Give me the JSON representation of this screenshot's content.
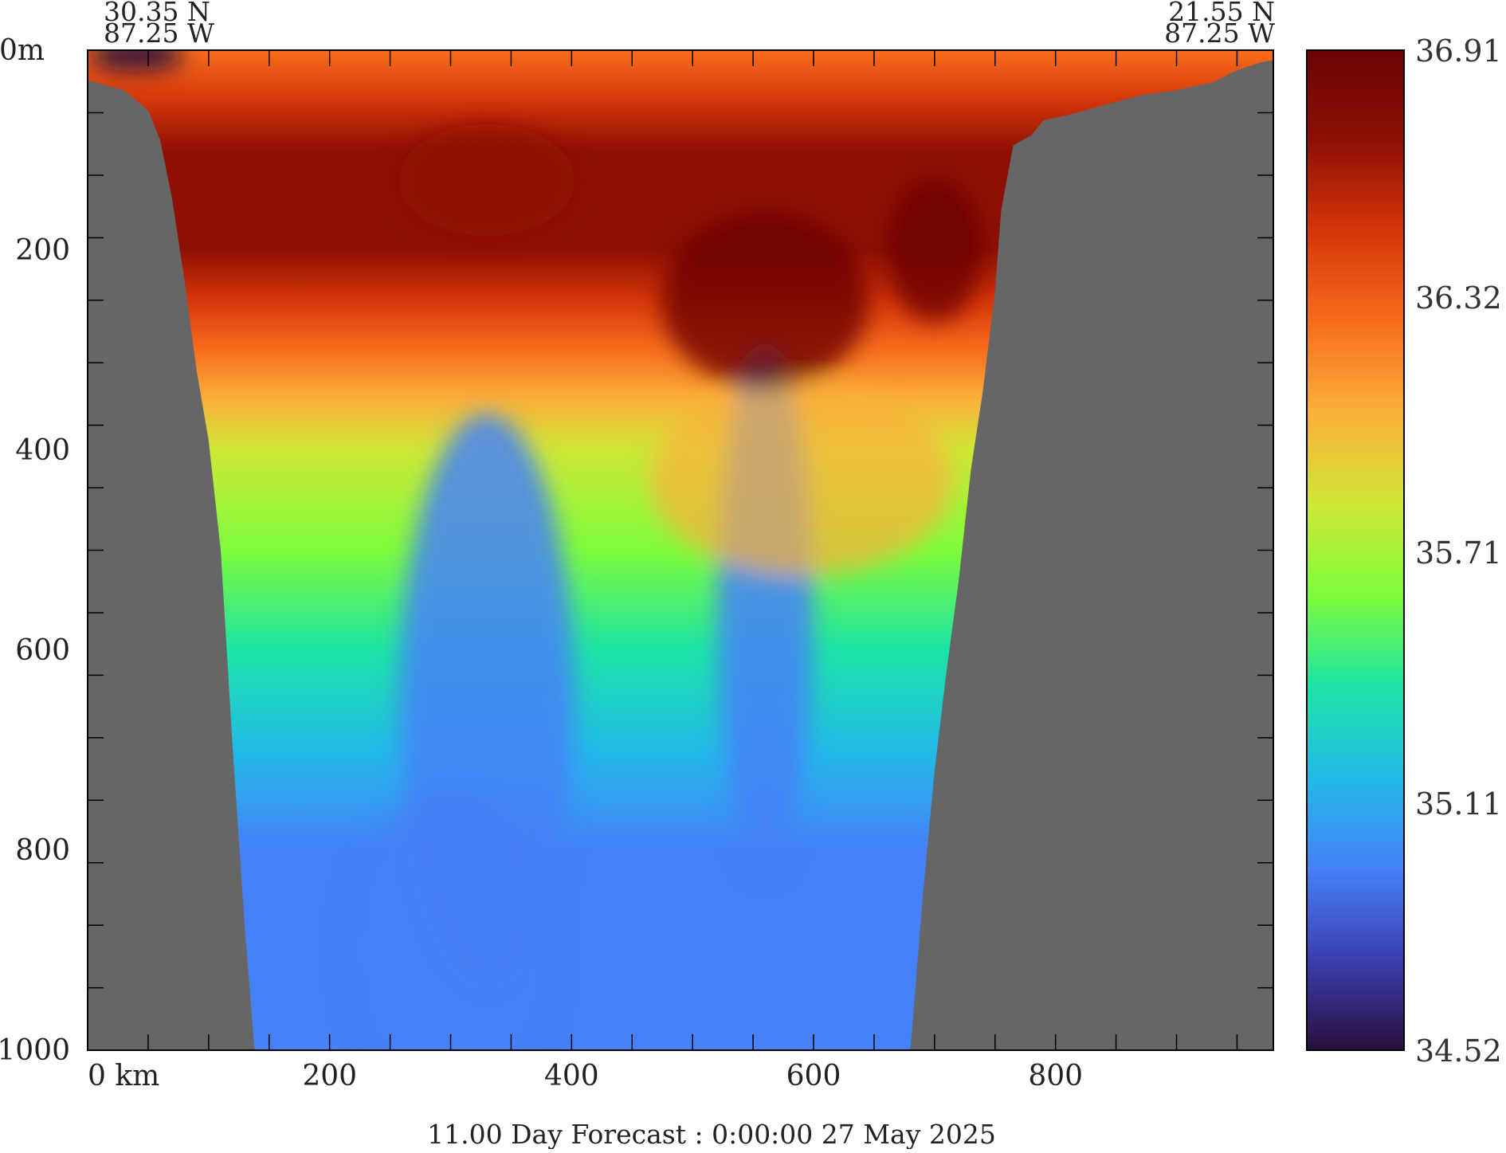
{
  "caption": "11.00 Day Forecast :  0:00:00  27 May 2025",
  "colors": {
    "land": "#666666",
    "frame": "#000000",
    "palette": [
      "#2a0f3b",
      "#3b3fb0",
      "#4581f7",
      "#22bbe8",
      "#1ce4a5",
      "#7efc3c",
      "#cfe836",
      "#fbb13a",
      "#f86e1d",
      "#d6360a",
      "#8e1004",
      "#6b0303"
    ]
  },
  "chart_data": {
    "type": "heatmap",
    "title": "",
    "xlabel": "",
    "ylabel": "",
    "x_unit_label": "0 km",
    "y_unit_label": "0m",
    "xlim": [
      0,
      980
    ],
    "ylim": [
      1000,
      0
    ],
    "x_ticks": [
      {
        "value": 0,
        "label": "0 km"
      },
      {
        "value": 200,
        "label": "200"
      },
      {
        "value": 400,
        "label": "400"
      },
      {
        "value": 600,
        "label": "600"
      },
      {
        "value": 800,
        "label": "800"
      }
    ],
    "y_ticks": [
      {
        "value": 0,
        "label": "0m"
      },
      {
        "value": 200,
        "label": "200"
      },
      {
        "value": 400,
        "label": "400"
      },
      {
        "value": 600,
        "label": "600"
      },
      {
        "value": 800,
        "label": "800"
      },
      {
        "value": 1000,
        "label": "1000"
      }
    ],
    "start_point": {
      "lat": "30.35 N",
      "lon": "87.25 W"
    },
    "end_point": {
      "lat": "21.55 N",
      "lon": "87.25 W"
    },
    "colorbar": {
      "min": 34.52,
      "max": 36.91,
      "labels": [
        "36.91",
        "36.32",
        "35.71",
        "35.11",
        "34.52"
      ],
      "values": [
        36.91,
        36.32,
        35.71,
        35.11,
        34.52
      ]
    },
    "bottom_profile": [
      [
        0,
        30
      ],
      [
        30,
        40
      ],
      [
        50,
        60
      ],
      [
        60,
        90
      ],
      [
        70,
        150
      ],
      [
        80,
        230
      ],
      [
        90,
        320
      ],
      [
        100,
        390
      ],
      [
        110,
        500
      ],
      [
        120,
        700
      ],
      [
        130,
        880
      ],
      [
        138,
        1000
      ],
      [
        680,
        1000
      ],
      [
        690,
        850
      ],
      [
        700,
        720
      ],
      [
        710,
        620
      ],
      [
        720,
        530
      ],
      [
        730,
        420
      ],
      [
        740,
        340
      ],
      [
        750,
        240
      ],
      [
        755,
        160
      ],
      [
        765,
        95
      ],
      [
        780,
        85
      ],
      [
        790,
        70
      ],
      [
        810,
        65
      ],
      [
        840,
        55
      ],
      [
        870,
        45
      ],
      [
        900,
        40
      ],
      [
        930,
        32
      ],
      [
        950,
        20
      ],
      [
        970,
        12
      ],
      [
        980,
        10
      ]
    ],
    "salinity_profile_depths": [
      0,
      50,
      100,
      150,
      200,
      250,
      300,
      350,
      400,
      500,
      600,
      700,
      800,
      1000
    ],
    "salinity_profile_values": [
      36.35,
      36.5,
      36.62,
      36.65,
      36.6,
      36.45,
      36.25,
      36.05,
      35.85,
      35.55,
      35.3,
      35.12,
      35.02,
      34.98
    ]
  }
}
